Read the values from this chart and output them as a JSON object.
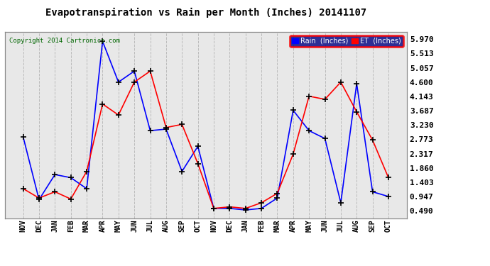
{
  "title": "Evapotranspiration vs Rain per Month (Inches) 20141107",
  "copyright": "Copyright 2014 Cartronics.com",
  "x_labels": [
    "NOV",
    "DEC",
    "JAN",
    "FEB",
    "MAR",
    "APR",
    "MAY",
    "JUN",
    "JUL",
    "AUG",
    "SEP",
    "OCT",
    "NOV",
    "DEC",
    "JAN",
    "FEB",
    "MAR",
    "APR",
    "MAY",
    "JUN",
    "JUL",
    "AUG",
    "SEP",
    "OCT"
  ],
  "rain_values": [
    2.85,
    0.85,
    1.65,
    1.55,
    1.2,
    5.9,
    4.6,
    4.95,
    3.05,
    3.1,
    1.75,
    2.55,
    0.57,
    0.57,
    0.52,
    0.57,
    0.9,
    3.7,
    3.05,
    2.8,
    0.75,
    4.55,
    1.1,
    0.95
  ],
  "et_values": [
    1.2,
    0.9,
    1.1,
    0.87,
    1.75,
    3.9,
    3.55,
    4.6,
    4.95,
    3.15,
    3.25,
    2.0,
    0.57,
    0.62,
    0.57,
    0.75,
    1.05,
    2.3,
    4.15,
    4.05,
    4.6,
    3.65,
    2.75,
    1.55
  ],
  "rain_color": "#0000ff",
  "et_color": "#ff0000",
  "background_color": "#ffffff",
  "plot_bg_color": "#e8e8e8",
  "grid_color": "#bbbbbb",
  "y_ticks": [
    0.49,
    0.947,
    1.403,
    1.86,
    2.317,
    2.773,
    3.23,
    3.687,
    4.143,
    4.6,
    5.057,
    5.513,
    5.97
  ],
  "y_min": 0.26,
  "y_max": 6.2,
  "title_fontsize": 10,
  "legend_rain_label": "Rain  (Inches)",
  "legend_et_label": "ET  (Inches)",
  "marker": "+",
  "marker_color": "#000000",
  "marker_size": 6,
  "line_width": 1.2,
  "copyright_color": "#006600",
  "legend_bg_color": "#000080",
  "legend_edge_color": "#ff0000"
}
